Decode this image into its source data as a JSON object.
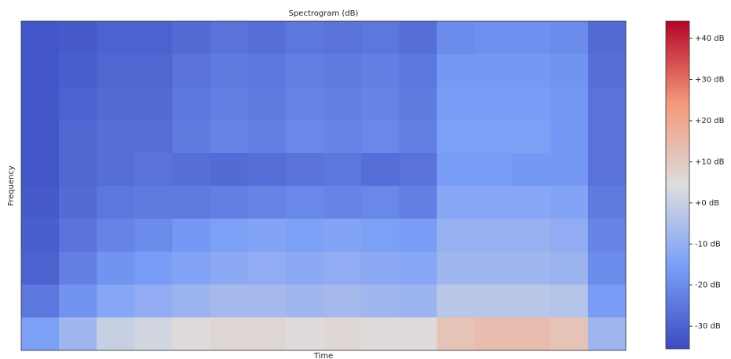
{
  "chart_data": {
    "type": "spectrogram",
    "title": "Spectrogram (dB)",
    "x_label": "Time",
    "y_label": "Frequency",
    "z": [
      [
        -33,
        -32,
        -30,
        -30,
        -28,
        -26,
        -27,
        -25,
        -26,
        -25,
        -27,
        -20,
        -19,
        -19,
        -20,
        -28
      ],
      [
        -33,
        -31,
        -29,
        -29,
        -26,
        -24,
        -25,
        -23,
        -24,
        -23,
        -25,
        -17,
        -17,
        -17,
        -18,
        -27
      ],
      [
        -33,
        -30,
        -28,
        -28,
        -25,
        -23,
        -24,
        -22,
        -23,
        -22,
        -24,
        -16,
        -16,
        -16,
        -17,
        -26
      ],
      [
        -33,
        -29,
        -27,
        -27,
        -24,
        -22,
        -23,
        -21,
        -22,
        -21,
        -23,
        -15,
        -15,
        -15,
        -17,
        -26
      ],
      [
        -33,
        -29,
        -27,
        -26,
        -27,
        -28,
        -27,
        -26,
        -25,
        -27,
        -26,
        -16,
        -16,
        -17,
        -17,
        -26
      ],
      [
        -32,
        -28,
        -25,
        -24,
        -24,
        -23,
        -22,
        -21,
        -22,
        -21,
        -23,
        -13,
        -13,
        -13,
        -14,
        -24
      ],
      [
        -31,
        -26,
        -22,
        -20,
        -17,
        -15,
        -14,
        -15,
        -14,
        -15,
        -16,
        -10,
        -10,
        -10,
        -11,
        -22
      ],
      [
        -30,
        -23,
        -18,
        -16,
        -14,
        -12,
        -11,
        -12,
        -11,
        -12,
        -13,
        -8,
        -8,
        -8,
        -9,
        -20
      ],
      [
        -25,
        -18,
        -13,
        -11,
        -9,
        -7,
        -7,
        -8,
        -7,
        -8,
        -9,
        -3,
        -3,
        -3,
        -4,
        -16
      ],
      [
        -15,
        -8,
        0,
        2,
        5,
        6,
        6,
        5,
        6,
        5,
        5,
        12,
        14,
        14,
        12,
        -8
      ]
    ],
    "colormap": [
      "#3b4cc0",
      "#7a9ef8",
      "#dddddd",
      "#f4997b",
      "#b40426"
    ],
    "clim": [
      -35.5,
      44.2
    ],
    "cticks": [
      {
        "value": 40,
        "label": "+40 dB"
      },
      {
        "value": 30,
        "label": "+30 dB"
      },
      {
        "value": 20,
        "label": "+20 dB"
      },
      {
        "value": 10,
        "label": "+10 dB"
      },
      {
        "value": 0,
        "label": "+0 dB"
      },
      {
        "value": -10,
        "label": "-10 dB"
      },
      {
        "value": -20,
        "label": "-20 dB"
      },
      {
        "value": -30,
        "label": "-30 dB"
      }
    ]
  }
}
